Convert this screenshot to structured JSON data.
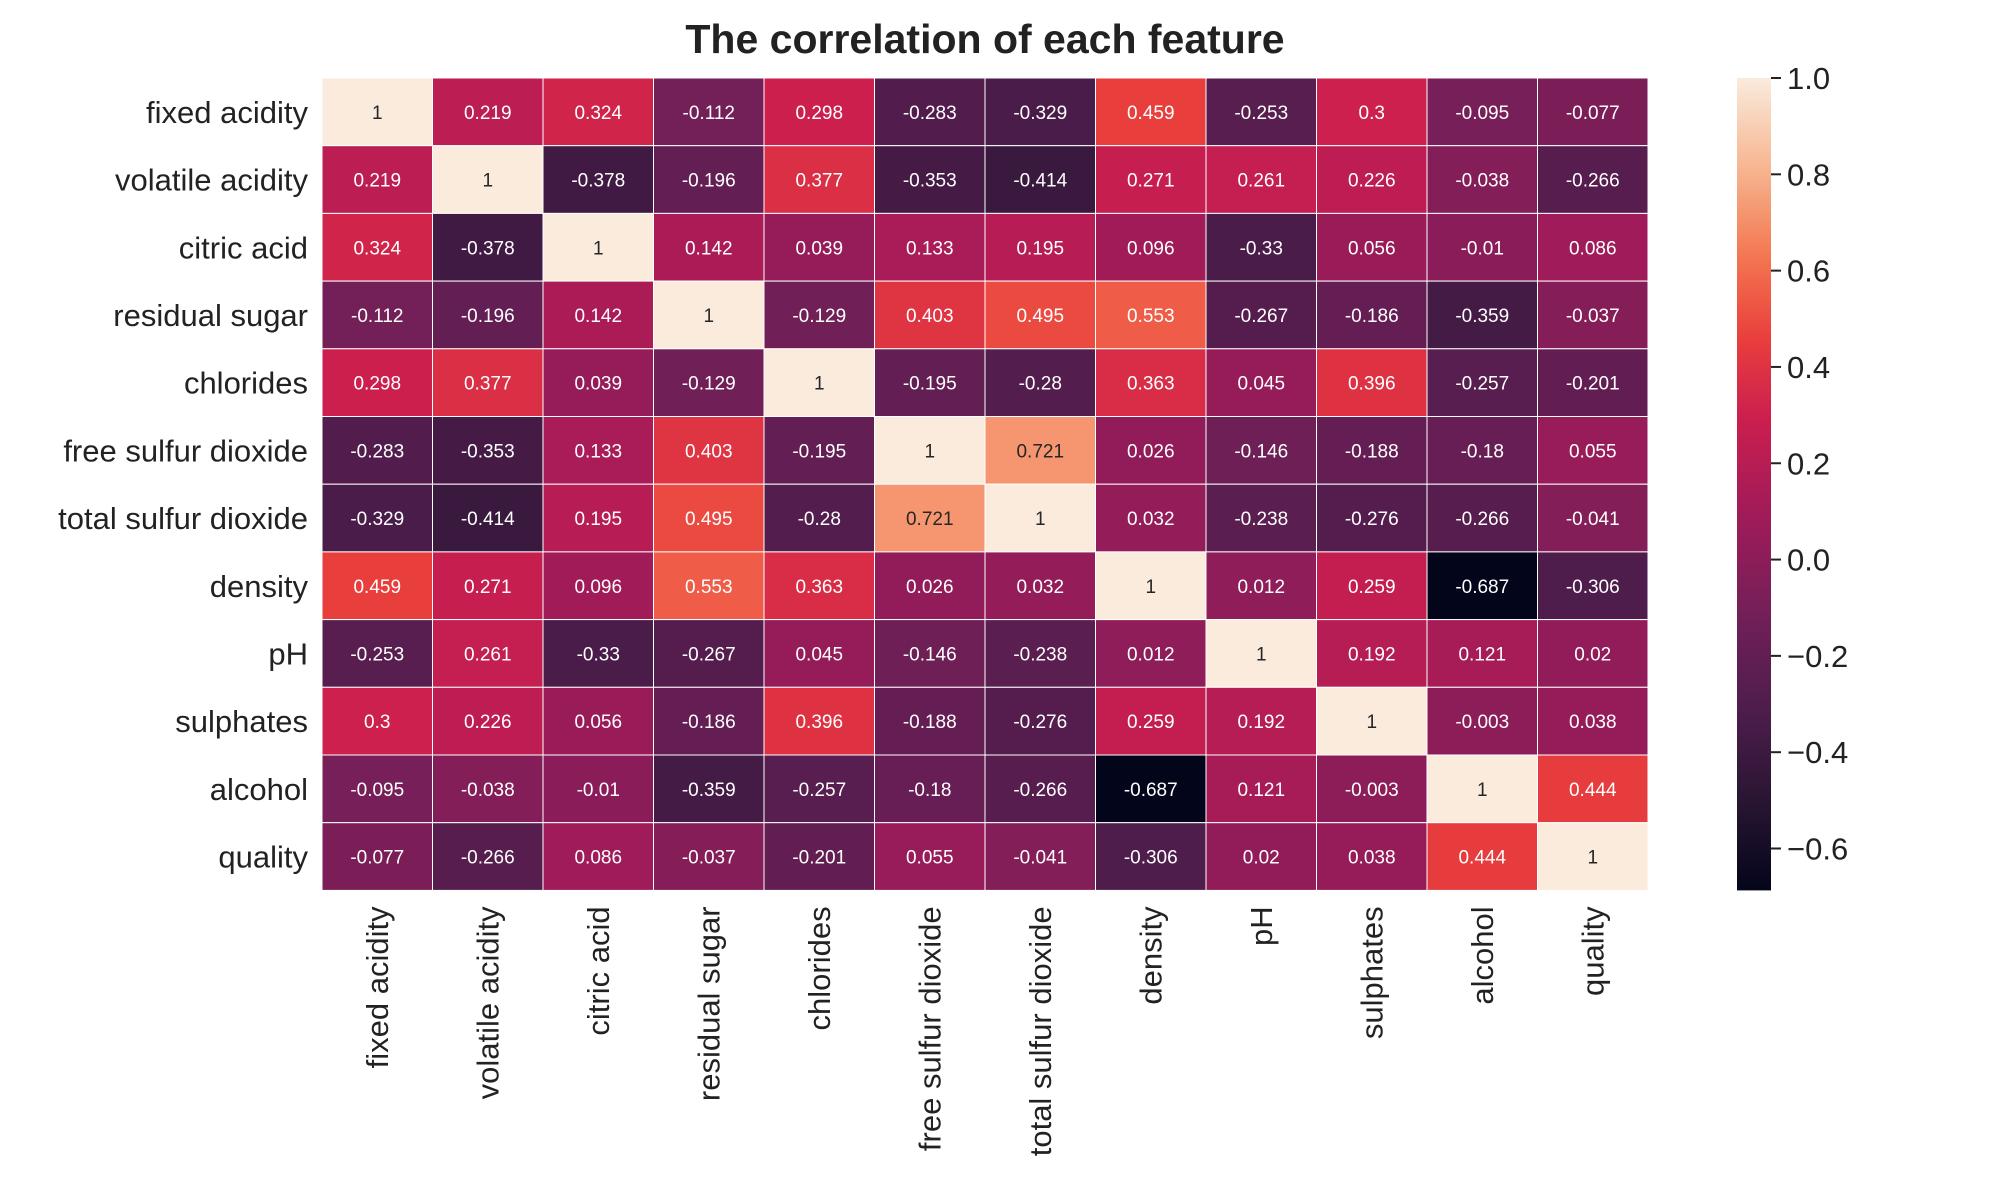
{
  "chart_data": {
    "type": "heatmap",
    "title": "The correlation of each feature",
    "rows": [
      "fixed acidity",
      "volatile acidity",
      "citric acid",
      "residual sugar",
      "chlorides",
      "free sulfur dioxide",
      "total sulfur dioxide",
      "density",
      "pH",
      "sulphates",
      "alcohol",
      "quality"
    ],
    "columns": [
      "fixed acidity",
      "volatile acidity",
      "citric acid",
      "residual sugar",
      "chlorides",
      "free sulfur dioxide",
      "total sulfur dioxide",
      "density",
      "pH",
      "sulphates",
      "alcohol",
      "quality"
    ],
    "values": [
      [
        1,
        0.219,
        0.324,
        -0.112,
        0.298,
        -0.283,
        -0.329,
        0.459,
        -0.253,
        0.3,
        -0.095,
        -0.077
      ],
      [
        0.219,
        1,
        -0.378,
        -0.196,
        0.377,
        -0.353,
        -0.414,
        0.271,
        0.261,
        0.226,
        -0.038,
        -0.266
      ],
      [
        0.324,
        -0.378,
        1,
        0.142,
        0.039,
        0.133,
        0.195,
        0.096,
        -0.33,
        0.056,
        -0.01,
        0.086
      ],
      [
        -0.112,
        -0.196,
        0.142,
        1,
        -0.129,
        0.403,
        0.495,
        0.553,
        -0.267,
        -0.186,
        -0.359,
        -0.037
      ],
      [
        0.298,
        0.377,
        0.039,
        -0.129,
        1,
        -0.195,
        -0.28,
        0.363,
        0.045,
        0.396,
        -0.257,
        -0.201
      ],
      [
        -0.283,
        -0.353,
        0.133,
        0.403,
        -0.195,
        1,
        0.721,
        0.026,
        -0.146,
        -0.188,
        -0.18,
        0.055
      ],
      [
        -0.329,
        -0.414,
        0.195,
        0.495,
        -0.28,
        0.721,
        1,
        0.032,
        -0.238,
        -0.276,
        -0.266,
        -0.041
      ],
      [
        0.459,
        0.271,
        0.096,
        0.553,
        0.363,
        0.026,
        0.032,
        1,
        0.012,
        0.259,
        -0.687,
        -0.306
      ],
      [
        -0.253,
        0.261,
        -0.33,
        -0.267,
        0.045,
        -0.146,
        -0.238,
        0.012,
        1,
        0.192,
        0.121,
        0.02
      ],
      [
        0.3,
        0.226,
        0.056,
        -0.186,
        0.396,
        -0.188,
        -0.276,
        0.259,
        0.192,
        1,
        -0.003,
        0.038
      ],
      [
        -0.095,
        -0.038,
        -0.01,
        -0.359,
        -0.257,
        -0.18,
        -0.266,
        -0.687,
        0.121,
        -0.003,
        1,
        0.444
      ],
      [
        -0.077,
        -0.266,
        0.086,
        -0.037,
        -0.201,
        0.055,
        -0.041,
        -0.306,
        0.02,
        0.038,
        0.444,
        1
      ]
    ],
    "colorbar": {
      "range": [
        -0.687,
        1.0
      ],
      "ticks": [
        1.0,
        0.8,
        0.6,
        0.4,
        0.2,
        0.0,
        -0.2,
        -0.4,
        -0.6
      ],
      "tick_labels": [
        "1.0",
        "0.8",
        "0.6",
        "0.4",
        "0.2",
        "0.0",
        "−0.2",
        "−0.4",
        "−0.6"
      ]
    },
    "colormap": "rocket",
    "cell_separator_color": "#ffffff",
    "annotations": true,
    "x_tick_rotation": "vertical",
    "legend": "colorbar right"
  }
}
